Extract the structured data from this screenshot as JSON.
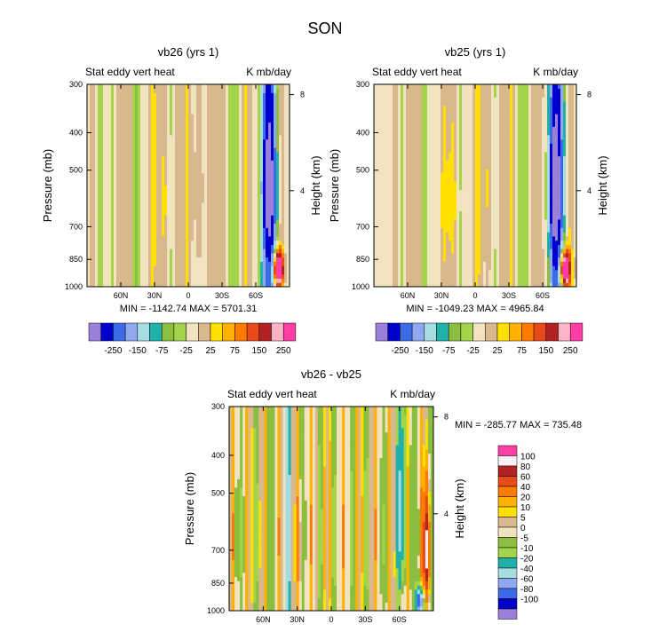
{
  "figure_title": "SON",
  "colors": {
    "top": [
      "#9b7fd9",
      "#0000cd",
      "#3d6be8",
      "#8fa8f0",
      "#a6dde3",
      "#20b2aa",
      "#8cbf3f",
      "#a3d44a",
      "#f2e3c0",
      "#d8b88c",
      "#ffe000",
      "#ffb000",
      "#ff7a00",
      "#e84a1a",
      "#b22222",
      "#ffb3c6",
      "#ff3ea5"
    ],
    "diff": [
      "#9b7fd9",
      "#0000cd",
      "#3d6be8",
      "#8fa8f0",
      "#a6dde3",
      "#20b2aa",
      "#a3d44a",
      "#8cbf3f",
      "#f2e3c0",
      "#d8b88c",
      "#ffe000",
      "#ffb000",
      "#ff7a00",
      "#e84a1a",
      "#b22222",
      "#fff0f5",
      "#ff3ea5"
    ]
  },
  "chart_data": [
    {
      "id": "vb26",
      "type": "contour",
      "title": "vb26 (yrs 1)",
      "left_string": "Stat eddy vert heat",
      "right_string": "K mb/day",
      "ylabel": "Pressure (mb)",
      "ylabel_right": "Height (km)",
      "x_ticks": [
        "60N",
        "30N",
        "0",
        "30S",
        "60S"
      ],
      "x_tick_values": [
        60,
        30,
        0,
        -30,
        -60
      ],
      "xlim": [
        90,
        -90
      ],
      "y_ticks": [
        "300",
        "400",
        "500",
        "700",
        "850",
        "1000"
      ],
      "y_tick_values": [
        300,
        400,
        500,
        700,
        850,
        1000
      ],
      "ylim": [
        1000,
        300
      ],
      "height_ticks": [
        "8",
        "4"
      ],
      "height_tick_values": [
        8,
        4
      ],
      "min_max": "MIN = -1142.74   MAX = 5701.31",
      "min": -1142.74,
      "max": 5701.31,
      "colorbar_labels": [
        "-250",
        "-150",
        "-75",
        "-25",
        "25",
        "75",
        "150",
        "250"
      ],
      "contour_levels": [
        -350,
        -250,
        -200,
        -150,
        -100,
        -75,
        -50,
        -25,
        0,
        25,
        50,
        75,
        100,
        150,
        200,
        250
      ]
    },
    {
      "id": "vb25",
      "type": "contour",
      "title": "vb25 (yrs 1)",
      "left_string": "Stat eddy vert heat",
      "right_string": "K mb/day",
      "ylabel": "Pressure (mb)",
      "ylabel_right": "Height (km)",
      "x_ticks": [
        "60N",
        "30N",
        "0",
        "30S",
        "60S"
      ],
      "x_tick_values": [
        60,
        30,
        0,
        -30,
        -60
      ],
      "xlim": [
        90,
        -90
      ],
      "y_ticks": [
        "300",
        "400",
        "500",
        "700",
        "850",
        "1000"
      ],
      "y_tick_values": [
        300,
        400,
        500,
        700,
        850,
        1000
      ],
      "ylim": [
        1000,
        300
      ],
      "height_ticks": [
        "8",
        "4"
      ],
      "height_tick_values": [
        8,
        4
      ],
      "min_max": "MIN = -1049.23   MAX = 4965.84",
      "min": -1049.23,
      "max": 4965.84,
      "colorbar_labels": [
        "-250",
        "-150",
        "-75",
        "-25",
        "25",
        "75",
        "150",
        "250"
      ],
      "contour_levels": [
        -350,
        -250,
        -200,
        -150,
        -100,
        -75,
        -50,
        -25,
        0,
        25,
        50,
        75,
        100,
        150,
        200,
        250
      ]
    },
    {
      "id": "diff",
      "type": "contour",
      "title": "vb26 - vb25",
      "left_string": "Stat eddy vert heat",
      "right_string": "K mb/day",
      "ylabel": "Pressure (mb)",
      "ylabel_right": "Height (km)",
      "x_ticks": [
        "60N",
        "30N",
        "0",
        "30S",
        "60S"
      ],
      "x_tick_values": [
        60,
        30,
        0,
        -30,
        -60
      ],
      "xlim": [
        90,
        -90
      ],
      "y_ticks": [
        "300",
        "400",
        "500",
        "700",
        "850",
        "1000"
      ],
      "y_tick_values": [
        300,
        400,
        500,
        700,
        850,
        1000
      ],
      "ylim": [
        1000,
        300
      ],
      "height_ticks": [
        "8",
        "4"
      ],
      "height_tick_values": [
        8,
        4
      ],
      "min_max": "MIN = -285.77   MAX = 735.48",
      "min": -285.77,
      "max": 735.48,
      "colorbar_labels": [
        "100",
        "80",
        "60",
        "40",
        "20",
        "10",
        "5",
        "0",
        "-5",
        "-10",
        "-20",
        "-40",
        "-60",
        "-80",
        "-100"
      ],
      "contour_levels": [
        -120,
        -100,
        -80,
        -60,
        -40,
        -20,
        -10,
        -5,
        0,
        5,
        10,
        20,
        40,
        60,
        80,
        100
      ]
    }
  ]
}
